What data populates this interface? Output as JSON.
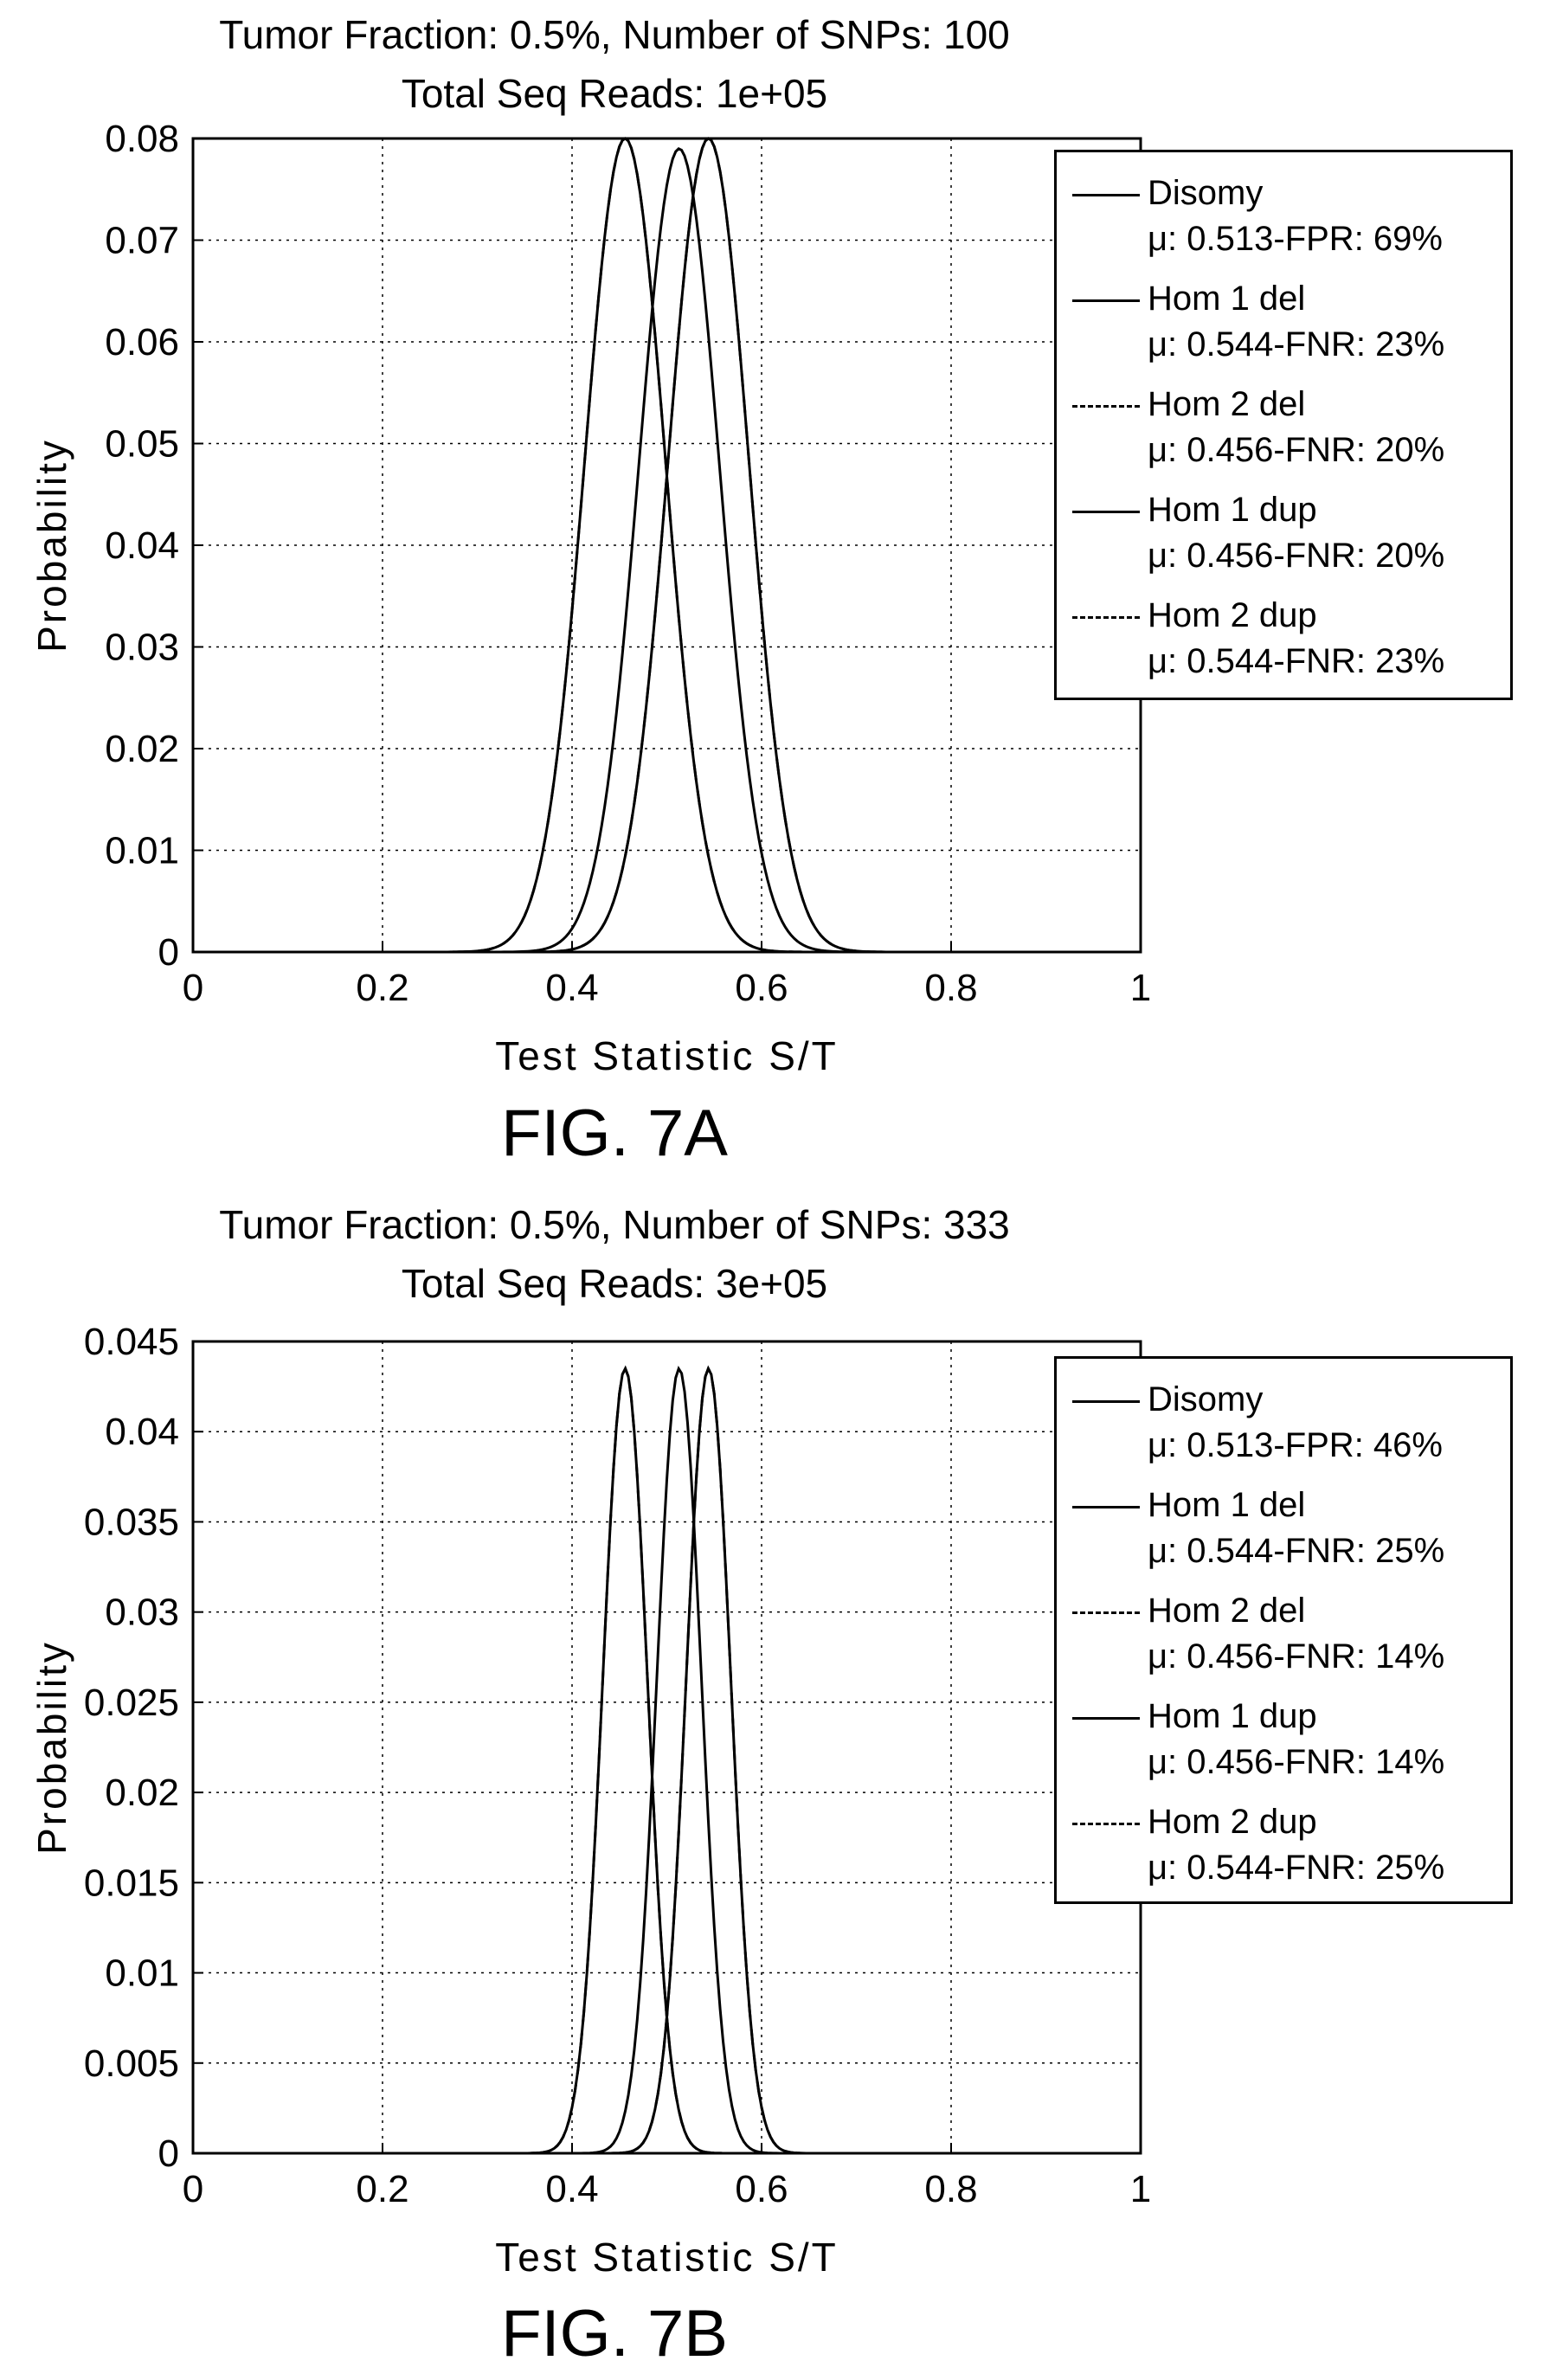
{
  "chart_data": [
    {
      "type": "line",
      "title": "Tumor Fraction: 0.5%, Number of SNPs: 100",
      "subtitle": "Total Seq Reads: 1e+05",
      "xlabel": "Test Statistic S/T",
      "ylabel": "Probability",
      "xlim": [
        0,
        1
      ],
      "ylim": [
        0,
        0.08
      ],
      "xticks": [
        "0",
        "0.2",
        "0.4",
        "0.6",
        "0.8",
        "1"
      ],
      "xtick_values": [
        0,
        0.2,
        0.4,
        0.6,
        0.8,
        1
      ],
      "yticks": [
        "0",
        "0.01",
        "0.02",
        "0.03",
        "0.04",
        "0.05",
        "0.06",
        "0.07",
        "0.08"
      ],
      "ytick_values": [
        0,
        0.01,
        0.02,
        0.03,
        0.04,
        0.05,
        0.06,
        0.07,
        0.08
      ],
      "grid": true,
      "legend_position": "top-right",
      "curve_sd": 0.0425,
      "series": [
        {
          "name": "Disomy",
          "stat": "μ: 0.513-FPR: 69%",
          "mean": 0.513,
          "peak": 0.079,
          "style": "solid"
        },
        {
          "name": "Hom 1 del",
          "stat": "μ: 0.544-FNR: 23%",
          "mean": 0.544,
          "peak": 0.08,
          "style": "solid"
        },
        {
          "name": "Hom 2 del",
          "stat": "μ: 0.456-FNR: 20%",
          "mean": 0.456,
          "peak": 0.08,
          "style": "dashed"
        },
        {
          "name": "Hom 1 dup",
          "stat": "μ: 0.456-FNR: 20%",
          "mean": 0.456,
          "peak": 0.08,
          "style": "solid"
        },
        {
          "name": "Hom 2 dup",
          "stat": "μ: 0.544-FNR: 23%",
          "mean": 0.544,
          "peak": 0.08,
          "style": "dashed"
        }
      ]
    },
    {
      "type": "line",
      "title": "Tumor Fraction: 0.5%, Number of SNPs: 333",
      "subtitle": "Total Seq Reads: 3e+05",
      "xlabel": "Test Statistic S/T",
      "ylabel": "Probability",
      "xlim": [
        0,
        1
      ],
      "ylim": [
        0,
        0.045
      ],
      "xticks": [
        "0",
        "0.2",
        "0.4",
        "0.6",
        "0.8",
        "1"
      ],
      "xtick_values": [
        0,
        0.2,
        0.4,
        0.6,
        0.8,
        1
      ],
      "yticks": [
        "0",
        "0.005",
        "0.01",
        "0.015",
        "0.02",
        "0.025",
        "0.03",
        "0.035",
        "0.04",
        "0.045"
      ],
      "ytick_values": [
        0,
        0.005,
        0.01,
        0.015,
        0.02,
        0.025,
        0.03,
        0.035,
        0.04,
        0.045
      ],
      "grid": true,
      "legend_position": "top-right",
      "curve_sd": 0.0235,
      "series": [
        {
          "name": "Disomy",
          "stat": "μ: 0.513-FPR: 46%",
          "mean": 0.513,
          "peak": 0.0435,
          "style": "solid"
        },
        {
          "name": "Hom 1 del",
          "stat": "μ: 0.544-FNR: 25%",
          "mean": 0.544,
          "peak": 0.0435,
          "style": "solid"
        },
        {
          "name": "Hom 2 del",
          "stat": "μ: 0.456-FNR: 14%",
          "mean": 0.456,
          "peak": 0.0435,
          "style": "dashed"
        },
        {
          "name": "Hom 1 dup",
          "stat": "μ: 0.456-FNR: 14%",
          "mean": 0.456,
          "peak": 0.0435,
          "style": "solid"
        },
        {
          "name": "Hom 2 dup",
          "stat": "μ: 0.544-FNR: 25%",
          "mean": 0.544,
          "peak": 0.0435,
          "style": "dashed"
        }
      ]
    }
  ],
  "captions": [
    "FIG. 7A",
    "FIG. 7B"
  ]
}
